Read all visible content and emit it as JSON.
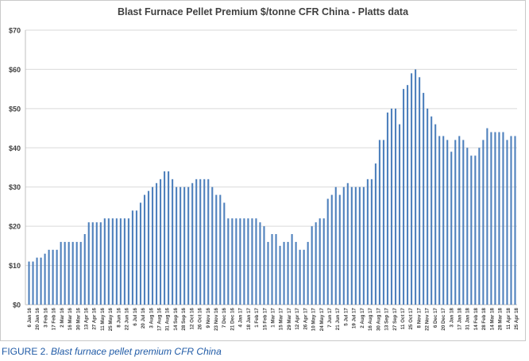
{
  "caption": {
    "label": "FIGURE 2.",
    "text": "Blast furnace pellet premium CFR China"
  },
  "colors": {
    "bar": "#4f81bd",
    "grid": "#d9d9d9",
    "axis_text": "#404040",
    "caption": "#1f5aa6"
  },
  "chart_data": {
    "type": "bar",
    "title": "Blast Furnace Pellet Premium $/tonne CFR China - Platts data",
    "xlabel": "",
    "ylabel": "",
    "ylim": [
      0,
      70
    ],
    "yticks": [
      "$0",
      "$10",
      "$20",
      "$30",
      "$40",
      "$50",
      "$60",
      "$70"
    ],
    "grid": true,
    "legend": "none",
    "xtick_labels": [
      "6 Jan 16",
      "20 Jan 16",
      "3 Feb 16",
      "17 Feb 16",
      "2 Mar 16",
      "16 Mar 16",
      "30 Mar 16",
      "13 Apr 16",
      "27 Apr 16",
      "11 May 16",
      "25 May 16",
      "8 Jun 16",
      "22 Jun 16",
      "6 Jul 16",
      "20 Jul 16",
      "3 Aug 16",
      "17 Aug 16",
      "31 Aug 16",
      "14 Sep 16",
      "28 Sep 16",
      "12 Oct 16",
      "26 Oct 16",
      "9 Nov 16",
      "23 Nov 16",
      "7 Dec 16",
      "21 Dec 16",
      "4 Jan 17",
      "18 Jan 17",
      "1 Feb 17",
      "15 Feb 17",
      "1 Mar 17",
      "15 Mar 17",
      "29 Mar 17",
      "12 Apr 17",
      "26 Apr 17",
      "10 May 17",
      "24 May 17",
      "7 Jun 17",
      "21 Jun 17",
      "5 Jul 17",
      "19 Jul 17",
      "2 Aug 17",
      "16 Aug 17",
      "30 Aug 17",
      "13 Sep 17",
      "27 Sep 17",
      "11 Oct 17",
      "25 Oct 17",
      "8 Nov 17",
      "22 Nov 17",
      "6 Dec 17",
      "20 Dec 17",
      "3 Jan 18",
      "17 Jan 18",
      "31 Jan 18",
      "14 Feb 18",
      "28 Feb 18",
      "14 Mar 18",
      "28 Mar 18",
      "11 Apr 18",
      "25 Apr 18"
    ],
    "values": [
      11,
      11,
      12,
      12,
      13,
      14,
      14,
      14,
      16,
      16,
      16,
      16,
      16,
      16,
      18,
      21,
      21,
      21,
      21,
      22,
      22,
      22,
      22,
      22,
      22,
      22,
      24,
      24,
      26,
      28,
      29,
      30,
      31,
      32,
      34,
      34,
      32,
      30,
      30,
      30,
      30,
      31,
      32,
      32,
      32,
      32,
      30,
      28,
      28,
      26,
      22,
      22,
      22,
      22,
      22,
      22,
      22,
      22,
      21,
      20,
      16,
      18,
      18,
      15,
      16,
      16,
      18,
      16,
      14,
      14,
      16,
      20,
      21,
      22,
      22,
      27,
      28,
      30,
      28,
      30,
      31,
      30,
      30,
      30,
      30,
      32,
      32,
      36,
      42,
      42,
      49,
      50,
      50,
      46,
      55,
      56,
      59,
      60,
      58,
      54,
      50,
      48,
      46,
      43,
      43,
      42,
      39,
      42,
      43,
      42,
      40,
      38,
      38,
      40,
      42,
      45,
      44,
      44,
      44,
      44,
      42,
      43,
      43
    ]
  }
}
